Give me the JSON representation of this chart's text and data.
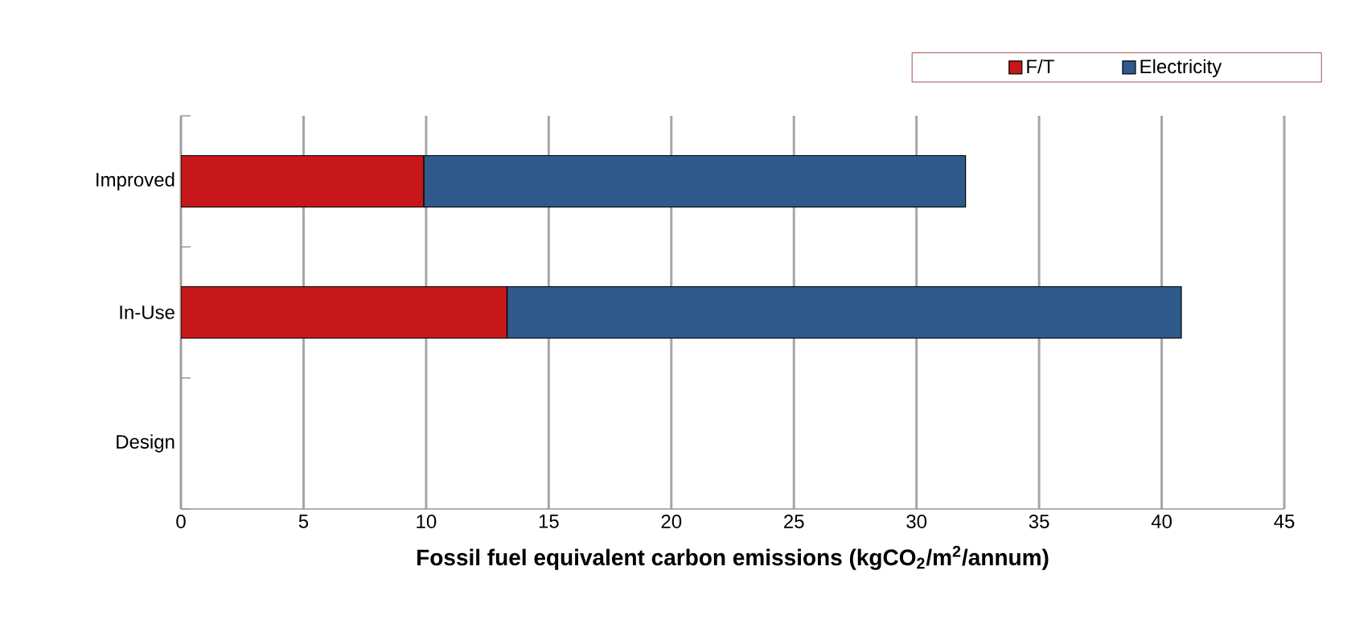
{
  "chart_data": {
    "type": "bar",
    "orientation": "horizontal",
    "stacked": true,
    "xlabel": "Fossil fuel equivalent carbon emissions (kgCO$_{2}$/m$^{2}$/annum)",
    "categories": [
      "Improved",
      "In-Use",
      "Design"
    ],
    "series": [
      {
        "name": "F/T",
        "color": "#c8171a",
        "values": [
          9.9,
          13.3,
          0
        ]
      },
      {
        "name": "Electricity",
        "color": "#2e5a8c",
        "values": [
          22.1,
          27.5,
          0
        ]
      }
    ],
    "xlim": [
      0,
      45
    ],
    "xticks": [
      0,
      5,
      10,
      15,
      20,
      25,
      30,
      35,
      40,
      45
    ],
    "grid": "x",
    "legend": "top right"
  }
}
